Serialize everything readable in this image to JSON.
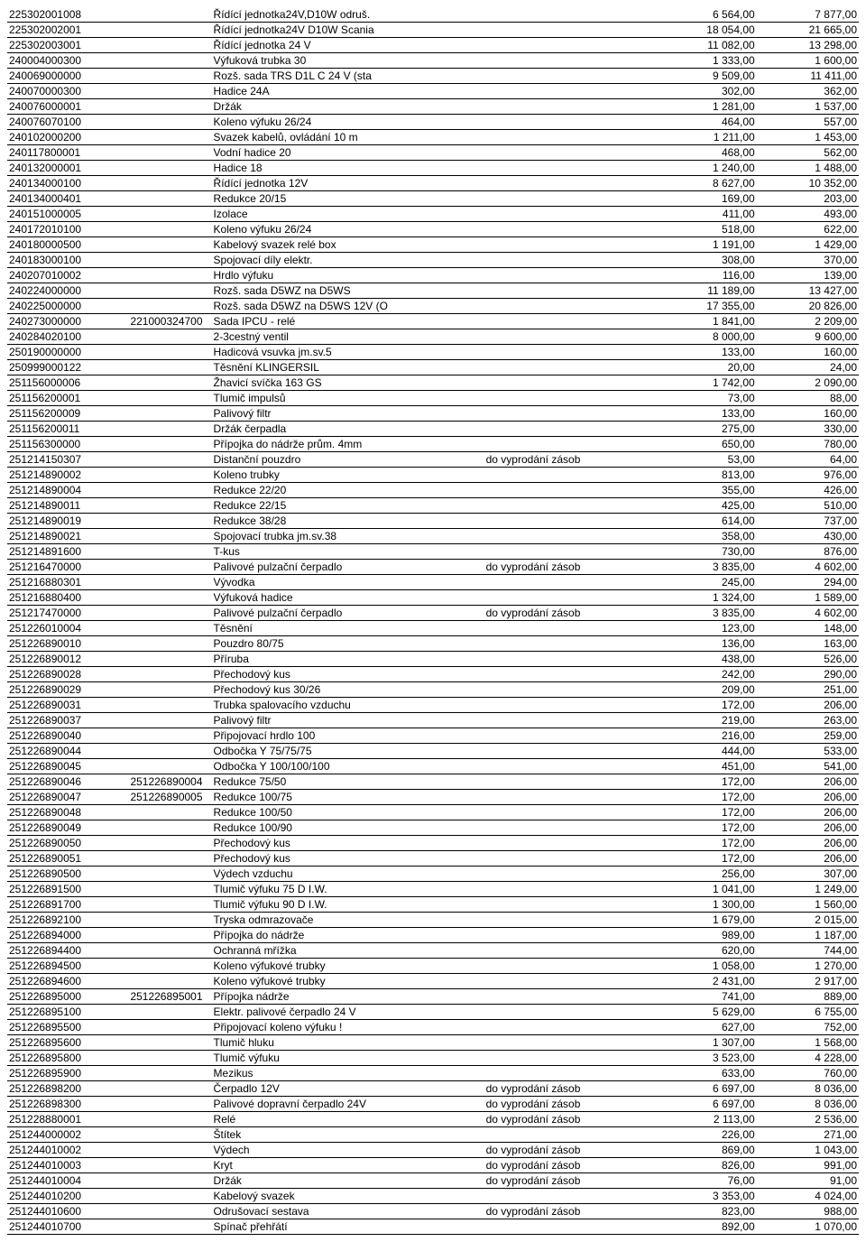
{
  "rows": [
    {
      "c1": "225302001008",
      "c2": "",
      "desc": "Řídící jednotka24V,D10W odruš.",
      "note": "",
      "p1": "6 564,00",
      "p2": "7 877,00"
    },
    {
      "c1": "225302002001",
      "c2": "",
      "desc": "Řídící jednotka24V D10W Scania",
      "note": "",
      "p1": "18 054,00",
      "p2": "21 665,00"
    },
    {
      "c1": "225302003001",
      "c2": "",
      "desc": "Řídící jednotka 24 V",
      "note": "",
      "p1": "11 082,00",
      "p2": "13 298,00"
    },
    {
      "c1": "240004000300",
      "c2": "",
      "desc": "Výfuková trubka 30",
      "note": "",
      "p1": "1 333,00",
      "p2": "1 600,00"
    },
    {
      "c1": "240069000000",
      "c2": "",
      "desc": "Rozš. sada TRS D1L C 24 V (sta",
      "note": "",
      "p1": "9 509,00",
      "p2": "11 411,00"
    },
    {
      "c1": "240070000300",
      "c2": "",
      "desc": "Hadice 24A",
      "note": "",
      "p1": "302,00",
      "p2": "362,00"
    },
    {
      "c1": "240076000001",
      "c2": "",
      "desc": "Držák",
      "note": "",
      "p1": "1 281,00",
      "p2": "1 537,00"
    },
    {
      "c1": "240076070100",
      "c2": "",
      "desc": "Koleno výfuku 26/24",
      "note": "",
      "p1": "464,00",
      "p2": "557,00"
    },
    {
      "c1": "240102000200",
      "c2": "",
      "desc": "Svazek kabelů, ovládání 10 m",
      "note": "",
      "p1": "1 211,00",
      "p2": "1 453,00"
    },
    {
      "c1": "240117800001",
      "c2": "",
      "desc": "Vodní hadice 20",
      "note": "",
      "p1": "468,00",
      "p2": "562,00"
    },
    {
      "c1": "240132000001",
      "c2": "",
      "desc": "Hadice 18",
      "note": "",
      "p1": "1 240,00",
      "p2": "1 488,00"
    },
    {
      "c1": "240134000100",
      "c2": "",
      "desc": "Řídící jednotka 12V",
      "note": "",
      "p1": "8 627,00",
      "p2": "10 352,00"
    },
    {
      "c1": "240134000401",
      "c2": "",
      "desc": "Redukce 20/15",
      "note": "",
      "p1": "169,00",
      "p2": "203,00"
    },
    {
      "c1": "240151000005",
      "c2": "",
      "desc": "Izolace",
      "note": "",
      "p1": "411,00",
      "p2": "493,00"
    },
    {
      "c1": "240172010100",
      "c2": "",
      "desc": "Koleno výfuku 26/24",
      "note": "",
      "p1": "518,00",
      "p2": "622,00"
    },
    {
      "c1": "240180000500",
      "c2": "",
      "desc": "Kabelový svazek relé box",
      "note": "",
      "p1": "1 191,00",
      "p2": "1 429,00"
    },
    {
      "c1": "240183000100",
      "c2": "",
      "desc": "Spojovací díly elektr.",
      "note": "",
      "p1": "308,00",
      "p2": "370,00"
    },
    {
      "c1": "240207010002",
      "c2": "",
      "desc": "Hrdlo výfuku",
      "note": "",
      "p1": "116,00",
      "p2": "139,00"
    },
    {
      "c1": "240224000000",
      "c2": "",
      "desc": "Rozš. sada D5WZ na D5WS",
      "note": "",
      "p1": "11 189,00",
      "p2": "13 427,00"
    },
    {
      "c1": "240225000000",
      "c2": "",
      "desc": "Rozš. sada D5WZ na D5WS 12V (O",
      "note": "",
      "p1": "17 355,00",
      "p2": "20 826,00"
    },
    {
      "c1": "240273000000",
      "c2": "221000324700",
      "desc": "Sada IPCU - relé",
      "note": "",
      "p1": "1 841,00",
      "p2": "2 209,00"
    },
    {
      "c1": "240284020100",
      "c2": "",
      "desc": "2-3cestný ventil",
      "note": "",
      "p1": "8 000,00",
      "p2": "9 600,00"
    },
    {
      "c1": "250190000000",
      "c2": "",
      "desc": "Hadicová vsuvka jm.sv.5",
      "note": "",
      "p1": "133,00",
      "p2": "160,00"
    },
    {
      "c1": "250999000122",
      "c2": "",
      "desc": "Těsnění KLINGERSIL",
      "note": "",
      "p1": "20,00",
      "p2": "24,00"
    },
    {
      "c1": "251156000006",
      "c2": "",
      "desc": "Žhavicí svíčka 163 GS",
      "note": "",
      "p1": "1 742,00",
      "p2": "2 090,00"
    },
    {
      "c1": "251156200001",
      "c2": "",
      "desc": "Tlumič impulsů",
      "note": "",
      "p1": "73,00",
      "p2": "88,00"
    },
    {
      "c1": "251156200009",
      "c2": "",
      "desc": "Palivový filtr",
      "note": "",
      "p1": "133,00",
      "p2": "160,00"
    },
    {
      "c1": "251156200011",
      "c2": "",
      "desc": "Držák čerpadla",
      "note": "",
      "p1": "275,00",
      "p2": "330,00"
    },
    {
      "c1": "251156300000",
      "c2": "",
      "desc": "Přípojka do nádrže prům. 4mm",
      "note": "",
      "p1": "650,00",
      "p2": "780,00"
    },
    {
      "c1": "251214150307",
      "c2": "",
      "desc": "Distanční pouzdro",
      "note": "do vyprodání zásob",
      "p1": "53,00",
      "p2": "64,00"
    },
    {
      "c1": "251214890002",
      "c2": "",
      "desc": "Koleno trubky",
      "note": "",
      "p1": "813,00",
      "p2": "976,00"
    },
    {
      "c1": "251214890004",
      "c2": "",
      "desc": "Redukce 22/20",
      "note": "",
      "p1": "355,00",
      "p2": "426,00"
    },
    {
      "c1": "251214890011",
      "c2": "",
      "desc": "Redukce 22/15",
      "note": "",
      "p1": "425,00",
      "p2": "510,00"
    },
    {
      "c1": "251214890019",
      "c2": "",
      "desc": "Redukce 38/28",
      "note": "",
      "p1": "614,00",
      "p2": "737,00"
    },
    {
      "c1": "251214890021",
      "c2": "",
      "desc": "Spojovací trubka jm.sv.38",
      "note": "",
      "p1": "358,00",
      "p2": "430,00"
    },
    {
      "c1": "251214891600",
      "c2": "",
      "desc": "T-kus",
      "note": "",
      "p1": "730,00",
      "p2": "876,00"
    },
    {
      "c1": "251216470000",
      "c2": "",
      "desc": "Palivové pulzační čerpadlo",
      "note": "do vyprodání zásob",
      "p1": "3 835,00",
      "p2": "4 602,00"
    },
    {
      "c1": "251216880301",
      "c2": "",
      "desc": "Vývodka",
      "note": "",
      "p1": "245,00",
      "p2": "294,00"
    },
    {
      "c1": "251216880400",
      "c2": "",
      "desc": "Výfuková hadice",
      "note": "",
      "p1": "1 324,00",
      "p2": "1 589,00"
    },
    {
      "c1": "251217470000",
      "c2": "",
      "desc": "Palivové pulzační čerpadlo",
      "note": "do vyprodání zásob",
      "p1": "3 835,00",
      "p2": "4 602,00"
    },
    {
      "c1": "251226010004",
      "c2": "",
      "desc": "Těsnění",
      "note": "",
      "p1": "123,00",
      "p2": "148,00"
    },
    {
      "c1": "251226890010",
      "c2": "",
      "desc": "Pouzdro 80/75",
      "note": "",
      "p1": "136,00",
      "p2": "163,00"
    },
    {
      "c1": "251226890012",
      "c2": "",
      "desc": "Příruba",
      "note": "",
      "p1": "438,00",
      "p2": "526,00"
    },
    {
      "c1": "251226890028",
      "c2": "",
      "desc": "Přechodový kus",
      "note": "",
      "p1": "242,00",
      "p2": "290,00"
    },
    {
      "c1": "251226890029",
      "c2": "",
      "desc": "Přechodový kus 30/26",
      "note": "",
      "p1": "209,00",
      "p2": "251,00"
    },
    {
      "c1": "251226890031",
      "c2": "",
      "desc": "Trubka spalovacího vzduchu",
      "note": "",
      "p1": "172,00",
      "p2": "206,00"
    },
    {
      "c1": "251226890037",
      "c2": "",
      "desc": "Palivový filtr",
      "note": "",
      "p1": "219,00",
      "p2": "263,00"
    },
    {
      "c1": "251226890040",
      "c2": "",
      "desc": "Připojovací hrdlo 100",
      "note": "",
      "p1": "216,00",
      "p2": "259,00"
    },
    {
      "c1": "251226890044",
      "c2": "",
      "desc": "Odbočka Y 75/75/75",
      "note": "",
      "p1": "444,00",
      "p2": "533,00"
    },
    {
      "c1": "251226890045",
      "c2": "",
      "desc": "Odbočka Y 100/100/100",
      "note": "",
      "p1": "451,00",
      "p2": "541,00"
    },
    {
      "c1": "251226890046",
      "c2": "251226890004",
      "desc": "Redukce 75/50",
      "note": "",
      "p1": "172,00",
      "p2": "206,00"
    },
    {
      "c1": "251226890047",
      "c2": "251226890005",
      "desc": "Redukce 100/75",
      "note": "",
      "p1": "172,00",
      "p2": "206,00"
    },
    {
      "c1": "251226890048",
      "c2": "",
      "desc": "Redukce 100/50",
      "note": "",
      "p1": "172,00",
      "p2": "206,00"
    },
    {
      "c1": "251226890049",
      "c2": "",
      "desc": "Redukce 100/90",
      "note": "",
      "p1": "172,00",
      "p2": "206,00"
    },
    {
      "c1": "251226890050",
      "c2": "",
      "desc": "Přechodový kus",
      "note": "",
      "p1": "172,00",
      "p2": "206,00"
    },
    {
      "c1": "251226890051",
      "c2": "",
      "desc": "Přechodový kus",
      "note": "",
      "p1": "172,00",
      "p2": "206,00"
    },
    {
      "c1": "251226890500",
      "c2": "",
      "desc": "Výdech vzduchu",
      "note": "",
      "p1": "256,00",
      "p2": "307,00"
    },
    {
      "c1": "251226891500",
      "c2": "",
      "desc": "Tlumič výfuku 75 D I.W.",
      "note": "",
      "p1": "1 041,00",
      "p2": "1 249,00"
    },
    {
      "c1": "251226891700",
      "c2": "",
      "desc": "Tlumič výfuku 90 D I.W.",
      "note": "",
      "p1": "1 300,00",
      "p2": "1 560,00"
    },
    {
      "c1": "251226892100",
      "c2": "",
      "desc": "Tryska odmrazovače",
      "note": "",
      "p1": "1 679,00",
      "p2": "2 015,00"
    },
    {
      "c1": "251226894000",
      "c2": "",
      "desc": "Přípojka do nádrže",
      "note": "",
      "p1": "989,00",
      "p2": "1 187,00"
    },
    {
      "c1": "251226894400",
      "c2": "",
      "desc": "Ochranná mřížka",
      "note": "",
      "p1": "620,00",
      "p2": "744,00"
    },
    {
      "c1": "251226894500",
      "c2": "",
      "desc": "Koleno výfukové trubky",
      "note": "",
      "p1": "1 058,00",
      "p2": "1 270,00"
    },
    {
      "c1": "251226894600",
      "c2": "",
      "desc": "Koleno výfukové trubky",
      "note": "",
      "p1": "2 431,00",
      "p2": "2 917,00"
    },
    {
      "c1": "251226895000",
      "c2": "251226895001",
      "desc": "Přípojka nádrže",
      "note": "",
      "p1": "741,00",
      "p2": "889,00"
    },
    {
      "c1": "251226895100",
      "c2": "",
      "desc": "Elektr. palivové čerpadlo 24 V",
      "note": "",
      "p1": "5 629,00",
      "p2": "6 755,00"
    },
    {
      "c1": "251226895500",
      "c2": "",
      "desc": "Připojovací koleno výfuku !",
      "note": "",
      "p1": "627,00",
      "p2": "752,00"
    },
    {
      "c1": "251226895600",
      "c2": "",
      "desc": "Tlumič hluku",
      "note": "",
      "p1": "1 307,00",
      "p2": "1 568,00"
    },
    {
      "c1": "251226895800",
      "c2": "",
      "desc": "Tlumič výfuku",
      "note": "",
      "p1": "3 523,00",
      "p2": "4 228,00"
    },
    {
      "c1": "251226895900",
      "c2": "",
      "desc": "Mezikus",
      "note": "",
      "p1": "633,00",
      "p2": "760,00"
    },
    {
      "c1": "251226898200",
      "c2": "",
      "desc": "Čerpadlo 12V",
      "note": "do vyprodání zásob",
      "p1": "6 697,00",
      "p2": "8 036,00"
    },
    {
      "c1": "251226898300",
      "c2": "",
      "desc": "Palivové dopravní čerpadlo 24V",
      "note": "do vyprodání zásob",
      "p1": "6 697,00",
      "p2": "8 036,00"
    },
    {
      "c1": "251228880001",
      "c2": "",
      "desc": "Relé",
      "note": "do vyprodání zásob",
      "p1": "2 113,00",
      "p2": "2 536,00"
    },
    {
      "c1": "251244000002",
      "c2": "",
      "desc": "Štítek",
      "note": "",
      "p1": "226,00",
      "p2": "271,00"
    },
    {
      "c1": "251244010002",
      "c2": "",
      "desc": "Výdech",
      "note": "do vyprodání zásob",
      "p1": "869,00",
      "p2": "1 043,00"
    },
    {
      "c1": "251244010003",
      "c2": "",
      "desc": "Kryt",
      "note": "do vyprodání zásob",
      "p1": "826,00",
      "p2": "991,00"
    },
    {
      "c1": "251244010004",
      "c2": "",
      "desc": "Držák",
      "note": "do vyprodání zásob",
      "p1": "76,00",
      "p2": "91,00"
    },
    {
      "c1": "251244010200",
      "c2": "",
      "desc": "Kabelový svazek",
      "note": "",
      "p1": "3 353,00",
      "p2": "4 024,00"
    },
    {
      "c1": "251244010600",
      "c2": "",
      "desc": "Odrušovací sestava",
      "note": "do vyprodání zásob",
      "p1": "823,00",
      "p2": "988,00"
    },
    {
      "c1": "251244010700",
      "c2": "",
      "desc": "Spínač přehřátí",
      "note": "",
      "p1": "892,00",
      "p2": "1 070,00"
    }
  ]
}
